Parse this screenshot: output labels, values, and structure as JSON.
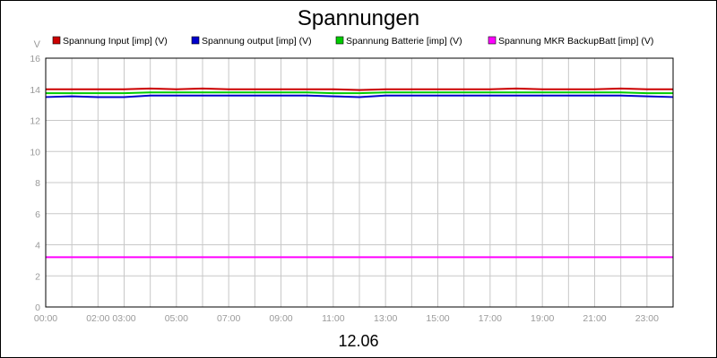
{
  "chart_data": {
    "type": "line",
    "title": "Spannungen",
    "xlabel": "12.06",
    "ylabel": "V",
    "ylim": [
      0,
      16
    ],
    "xlim": [
      0,
      24
    ],
    "yticks": [
      0,
      2,
      4,
      6,
      8,
      10,
      12,
      14,
      16
    ],
    "xticks": [
      {
        "hour": 0,
        "label": "00:00"
      },
      {
        "hour": 2,
        "label": "02:00"
      },
      {
        "hour": 3,
        "label": "03:00"
      },
      {
        "hour": 5,
        "label": "05:00"
      },
      {
        "hour": 7,
        "label": "07:00"
      },
      {
        "hour": 9,
        "label": "09:00"
      },
      {
        "hour": 11,
        "label": "11:00"
      },
      {
        "hour": 13,
        "label": "13:00"
      },
      {
        "hour": 15,
        "label": "15:00"
      },
      {
        "hour": 17,
        "label": "17:00"
      },
      {
        "hour": 19,
        "label": "19:00"
      },
      {
        "hour": 21,
        "label": "21:00"
      },
      {
        "hour": 23,
        "label": "23:00"
      }
    ],
    "grid": true,
    "legend_position": "top",
    "x": [
      0,
      1,
      2,
      3,
      4,
      5,
      6,
      7,
      8,
      9,
      10,
      11,
      12,
      13,
      14,
      15,
      16,
      17,
      18,
      19,
      20,
      21,
      22,
      23,
      24
    ],
    "series": [
      {
        "name": "Spannung Input [imp] (V)",
        "color": "#cc0000",
        "values": [
          14.0,
          14.0,
          14.0,
          14.0,
          14.05,
          14.0,
          14.05,
          14.0,
          14.0,
          14.0,
          14.0,
          14.0,
          13.95,
          14.0,
          14.0,
          14.0,
          14.0,
          14.0,
          14.05,
          14.0,
          14.0,
          14.0,
          14.05,
          14.0,
          14.0
        ]
      },
      {
        "name": "Spannung output [imp] (V)",
        "color": "#0000cc",
        "values": [
          13.5,
          13.55,
          13.5,
          13.5,
          13.6,
          13.6,
          13.6,
          13.6,
          13.6,
          13.6,
          13.6,
          13.55,
          13.5,
          13.6,
          13.6,
          13.6,
          13.6,
          13.6,
          13.6,
          13.6,
          13.6,
          13.6,
          13.6,
          13.55,
          13.5
        ]
      },
      {
        "name": "Spannung Batterie [imp] (V)",
        "color": "#00cc00",
        "values": [
          13.75,
          13.75,
          13.75,
          13.75,
          13.8,
          13.8,
          13.8,
          13.8,
          13.8,
          13.8,
          13.8,
          13.75,
          13.75,
          13.8,
          13.8,
          13.8,
          13.8,
          13.8,
          13.8,
          13.8,
          13.8,
          13.8,
          13.8,
          13.75,
          13.75
        ]
      },
      {
        "name": "Spannung MKR BackupBatt [imp] (V)",
        "color": "#ff00ff",
        "values": [
          3.2,
          3.2,
          3.2,
          3.2,
          3.2,
          3.2,
          3.2,
          3.2,
          3.2,
          3.2,
          3.2,
          3.2,
          3.2,
          3.2,
          3.2,
          3.2,
          3.2,
          3.2,
          3.2,
          3.2,
          3.2,
          3.2,
          3.2,
          3.2,
          3.2
        ]
      }
    ]
  }
}
